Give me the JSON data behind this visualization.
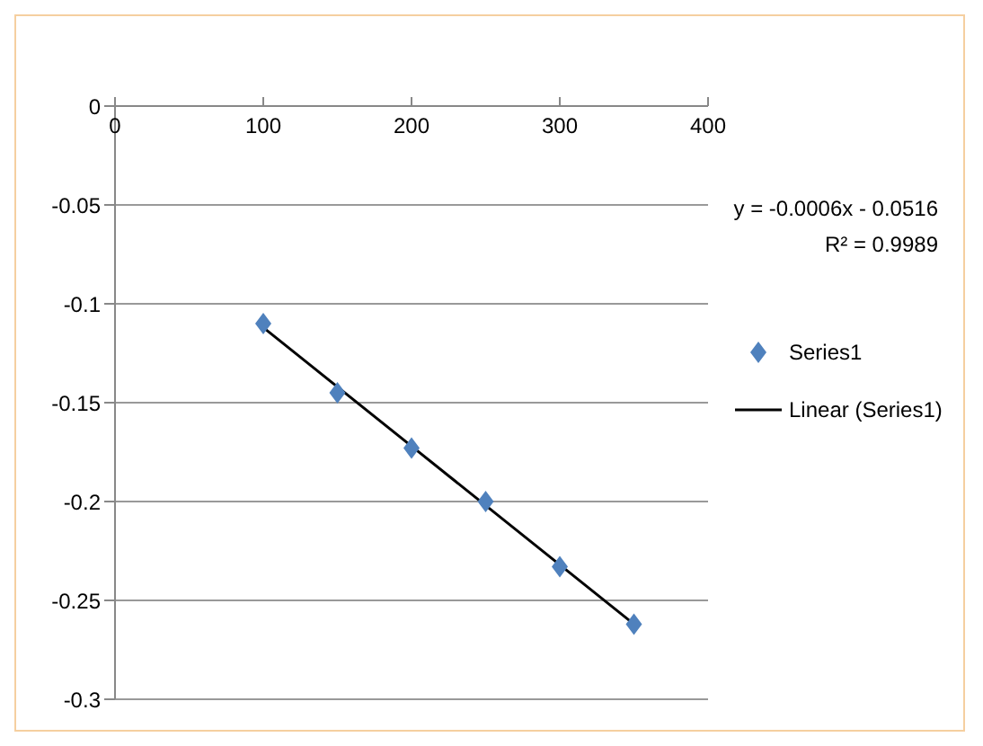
{
  "chart_data": {
    "type": "scatter",
    "xlim": [
      0,
      400
    ],
    "xticks": [
      0,
      100,
      200,
      300,
      400
    ],
    "ylim": [
      -0.3,
      0
    ],
    "yticks": [
      0,
      -0.05,
      -0.1,
      -0.15,
      -0.2,
      -0.25,
      -0.3
    ],
    "grid": "y",
    "legend": "right",
    "marker": "diamond",
    "annotations": [
      "y = -0.0006x - 0.0516",
      "R² = 0.9989"
    ],
    "series": [
      {
        "name": "Series1",
        "color": "#4f81bd",
        "x": [
          100,
          150,
          200,
          250,
          300,
          350
        ],
        "values": [
          -0.11,
          -0.145,
          -0.173,
          -0.2,
          -0.233,
          -0.262
        ]
      },
      {
        "name": "Linear (Series1)",
        "type": "line",
        "color": "#000000",
        "marker": "none",
        "x": [
          100,
          350
        ],
        "values": [
          -0.112,
          -0.262
        ]
      }
    ]
  }
}
